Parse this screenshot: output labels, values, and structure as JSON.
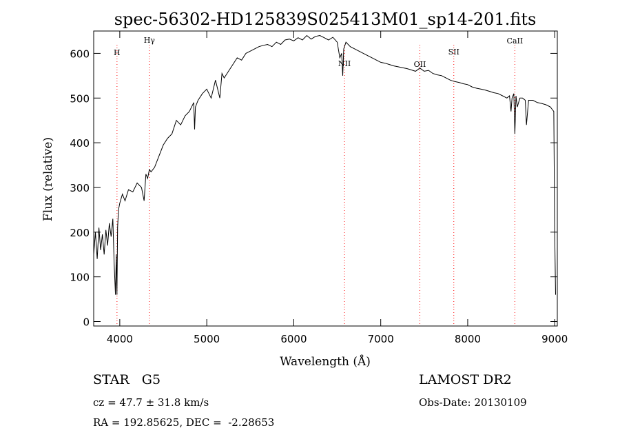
{
  "chart_data": {
    "type": "line",
    "title": "spec-56302-HD125839S025413M01_sp14-201.fits",
    "xlabel": "Wavelength (Å)",
    "ylabel": "Flux (relative)",
    "xlim": [
      3700,
      9030
    ],
    "ylim": [
      -10,
      650
    ],
    "xticks": [
      4000,
      5000,
      6000,
      7000,
      8000,
      9000
    ],
    "yticks": [
      0,
      100,
      200,
      300,
      400,
      500,
      600
    ],
    "grid": false,
    "line_color": "#000000",
    "marker_color": "#ff0000",
    "series": [
      {
        "x": [
          3700,
          3720,
          3740,
          3760,
          3780,
          3800,
          3820,
          3840,
          3860,
          3880,
          3900,
          3920,
          3935,
          3950,
          3960,
          3968,
          3975,
          3985,
          4000,
          4030,
          4060,
          4100,
          4150,
          4200,
          4250,
          4280,
          4300,
          4320,
          4340,
          4360,
          4400,
          4450,
          4500,
          4550,
          4600,
          4650,
          4700,
          4750,
          4800,
          4850,
          4860,
          4870,
          4900,
          4950,
          5000,
          5050,
          5100,
          5150,
          5175,
          5200,
          5250,
          5300,
          5350,
          5400,
          5450,
          5500,
          5550,
          5600,
          5650,
          5700,
          5750,
          5800,
          5850,
          5900,
          5950,
          6000,
          6050,
          6100,
          6150,
          6200,
          6250,
          6300,
          6350,
          6400,
          6450,
          6500,
          6530,
          6550,
          6563,
          6575,
          6600,
          6650,
          6700,
          6750,
          6800,
          6850,
          6900,
          6950,
          7000,
          7050,
          7100,
          7150,
          7200,
          7250,
          7300,
          7350,
          7400,
          7450,
          7500,
          7550,
          7600,
          7650,
          7700,
          7750,
          7800,
          7850,
          7900,
          7950,
          8000,
          8050,
          8100,
          8150,
          8200,
          8250,
          8300,
          8350,
          8400,
          8450,
          8480,
          8498,
          8510,
          8530,
          8542,
          8555,
          8570,
          8600,
          8630,
          8662,
          8675,
          8700,
          8750,
          8800,
          8850,
          8900,
          8950,
          8970,
          8990,
          9000,
          9010
        ],
        "y": [
          150,
          200,
          140,
          210,
          160,
          195,
          150,
          205,
          170,
          220,
          190,
          230,
          130,
          60,
          150,
          60,
          210,
          250,
          265,
          285,
          270,
          295,
          290,
          310,
          300,
          270,
          330,
          320,
          340,
          335,
          345,
          370,
          395,
          410,
          420,
          450,
          440,
          460,
          470,
          490,
          430,
          480,
          495,
          510,
          520,
          500,
          540,
          500,
          555,
          545,
          560,
          575,
          590,
          585,
          600,
          605,
          610,
          615,
          618,
          620,
          615,
          625,
          620,
          630,
          632,
          628,
          635,
          630,
          640,
          632,
          638,
          640,
          635,
          630,
          636,
          625,
          590,
          600,
          550,
          610,
          625,
          615,
          610,
          605,
          600,
          595,
          590,
          585,
          580,
          578,
          575,
          572,
          570,
          568,
          566,
          563,
          560,
          567,
          560,
          562,
          555,
          552,
          550,
          545,
          540,
          537,
          535,
          532,
          530,
          525,
          522,
          520,
          518,
          515,
          512,
          510,
          505,
          500,
          505,
          470,
          500,
          510,
          420,
          505,
          480,
          500,
          500,
          495,
          440,
          495,
          495,
          490,
          488,
          485,
          480,
          475,
          470,
          200,
          60
        ]
      }
    ],
    "line_markers": [
      {
        "label": "H",
        "x": 3968
      },
      {
        "label": "Hγ",
        "x": 4340
      },
      {
        "label": "NII",
        "x": 6583
      },
      {
        "label": "OII",
        "x": 7450
      },
      {
        "label": "SII",
        "x": 7840
      },
      {
        "label": "CaII",
        "x": 8542
      }
    ]
  },
  "info": {
    "object": "STAR   G5",
    "cz": "cz = 47.7 ± 31.8 km/s",
    "radec": "RA = 192.85625, DEC =  -2.28653",
    "survey": "LAMOST DR2",
    "obs_date": "Obs-Date: 20130109"
  }
}
